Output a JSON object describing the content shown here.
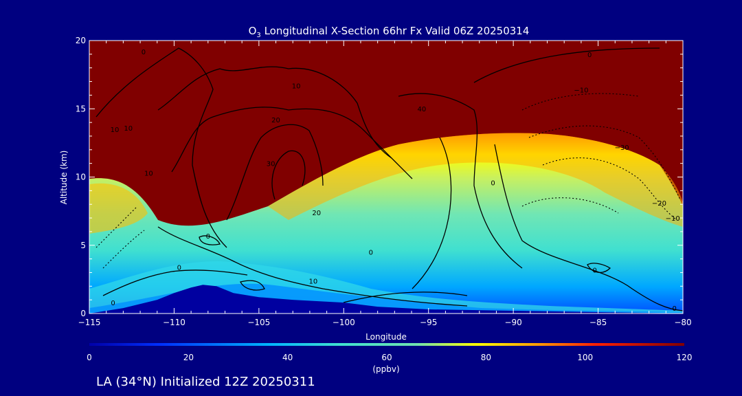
{
  "chart_data": {
    "type": "heatmap",
    "title_prefix": "O",
    "title_sub": "3",
    "title_rest": " Longitudinal X-Section 66hr  Fx Valid 06Z 20250314",
    "xlabel": "Longitude",
    "ylabel": "Altitude (km)",
    "xlim": [
      -115,
      -80
    ],
    "ylim": [
      0,
      20
    ],
    "x_ticks": [
      -115,
      -110,
      -105,
      -100,
      -95,
      -90,
      -85,
      -80
    ],
    "x_tick_labels": [
      "−115",
      "−110",
      "−105",
      "−100",
      "−95",
      "−90",
      "−85",
      "−80"
    ],
    "y_ticks": [
      0,
      5,
      10,
      15,
      20
    ],
    "y_tick_labels": [
      "0",
      "5",
      "10",
      "15",
      "20"
    ],
    "colorbar": {
      "min": 0,
      "max": 120,
      "ticks": [
        0,
        20,
        40,
        60,
        80,
        100,
        120
      ],
      "tick_labels": [
        "0",
        "20",
        "40",
        "60",
        "80",
        "100",
        "120"
      ],
      "unit": "(ppbv)",
      "colors": [
        "#0000a8",
        "#0030ff",
        "#00b4ff",
        "#40e0d0",
        "#70e0b0",
        "#ffff00",
        "#ffa000",
        "#ff2000",
        "#800000"
      ]
    },
    "terrain_color": "#0000a0",
    "terrain_profile": [
      [
        -115,
        0.0
      ],
      [
        -113,
        0.4
      ],
      [
        -111,
        1.0
      ],
      [
        -110,
        1.5
      ],
      [
        -109,
        1.9
      ],
      [
        -108.3,
        2.1
      ],
      [
        -107.5,
        2.0
      ],
      [
        -106.5,
        1.5
      ],
      [
        -105,
        1.2
      ],
      [
        -103,
        1.0
      ],
      [
        -100,
        0.8
      ],
      [
        -98,
        0.5
      ],
      [
        -95,
        0.3
      ],
      [
        -90,
        0.2
      ],
      [
        -85,
        0.1
      ],
      [
        -80,
        0.0
      ]
    ],
    "contour_labels": [
      {
        "text": "0",
        "x": -111.8,
        "y": 19.0
      },
      {
        "text": "0",
        "x": -85.5,
        "y": 18.8
      },
      {
        "text": "10",
        "x": -102.8,
        "y": 16.5
      },
      {
        "text": "10",
        "x": -112.7,
        "y": 13.4
      },
      {
        "text": "20",
        "x": -104.0,
        "y": 14.0
      },
      {
        "text": "30",
        "x": -104.3,
        "y": 10.8
      },
      {
        "text": "40",
        "x": -95.4,
        "y": 14.8
      },
      {
        "text": "20",
        "x": -101.6,
        "y": 7.2
      },
      {
        "text": "10",
        "x": -113.5,
        "y": 13.3
      },
      {
        "text": "−10",
        "x": -86.0,
        "y": 16.2
      },
      {
        "text": "−30",
        "x": -83.6,
        "y": 12.0
      },
      {
        "text": "−20",
        "x": -81.4,
        "y": 7.9
      },
      {
        "text": "−10",
        "x": -80.6,
        "y": 6.8
      },
      {
        "text": "0",
        "x": -91.2,
        "y": 9.4
      },
      {
        "text": "0",
        "x": -108.0,
        "y": 5.5
      },
      {
        "text": "0",
        "x": -109.7,
        "y": 3.2
      },
      {
        "text": "0",
        "x": -113.6,
        "y": 0.6
      },
      {
        "text": "10",
        "x": -101.8,
        "y": 2.2
      },
      {
        "text": "0",
        "x": -98.4,
        "y": 4.3
      },
      {
        "text": "0",
        "x": -85.2,
        "y": 3.0
      },
      {
        "text": "0",
        "x": -80.5,
        "y": 0.2
      },
      {
        "text": "10",
        "x": -111.5,
        "y": 10.1
      }
    ],
    "footer": "LA (34°N) Initialized 12Z 20250311"
  }
}
